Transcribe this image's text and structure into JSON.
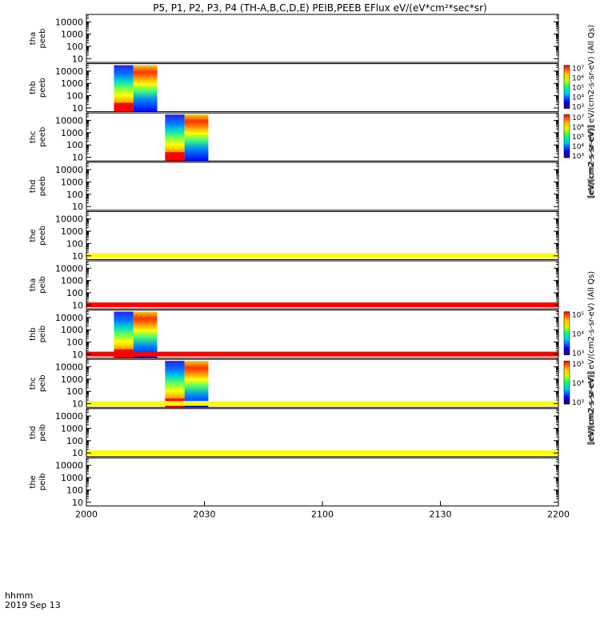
{
  "title": "P5, P1, P2, P3, P4 (TH-A,B,C,D,E) PEIB,PEEB EFlux eV/(eV*cm²*sec*sr)",
  "footer": {
    "time_label": "hhmm",
    "date_label": "2019 Sep 13"
  },
  "colors": {
    "red": "#ff0000",
    "yellow": "#ffff00",
    "black": "#000000"
  },
  "chart_data": {
    "type": "heatmap",
    "x_ticks": [
      "2000",
      "2030",
      "2100",
      "2130",
      "2200"
    ],
    "x_range_minutes": [
      0,
      120
    ],
    "y_ticks": [
      "10",
      "100",
      "1000",
      "10000"
    ],
    "y_range": [
      5,
      40000
    ],
    "y_scale": "log",
    "panels": [
      {
        "probe": "tha",
        "product": "peeb",
        "data": []
      },
      {
        "probe": "thb",
        "product": "peeb",
        "data": [
          {
            "start_min": 7,
            "end_min": 18,
            "energy_range": [
              5,
              30000
            ]
          }
        ],
        "colorbar": {
          "label": "[eV/(cm2-s-sr-eV)] eV/(cm2-s-sr-eV)  (All Qs)",
          "ticks": [
            "10⁷",
            "10⁶",
            "10⁵",
            "10⁴",
            "10³"
          ]
        }
      },
      {
        "probe": "thc",
        "product": "peeb",
        "data": [
          {
            "start_min": 20,
            "end_min": 31,
            "energy_range": [
              5,
              30000
            ]
          }
        ],
        "colorbar": {
          "label": "[eV/(cm2-s-sr-eV)]",
          "ticks": [
            "10⁷",
            "10⁶",
            "10⁵",
            "10⁴",
            "10³"
          ]
        }
      },
      {
        "probe": "thd",
        "product": "peeb",
        "data": []
      },
      {
        "probe": "the",
        "product": "peeb",
        "data": [],
        "bottom_strip": "yellow"
      },
      {
        "probe": "tha",
        "product": "peib",
        "data": [],
        "bottom_strip": "red"
      },
      {
        "probe": "thb",
        "product": "peib",
        "data": [
          {
            "start_min": 7,
            "end_min": 18,
            "energy_range": [
              5,
              30000
            ]
          }
        ],
        "bottom_strip": "red",
        "colorbar": {
          "label": "[eV/(cm2-s-sr-eV)] eV/(cm2-s-sr-eV)  (All Qs)",
          "ticks": [
            "10⁵",
            "10⁴",
            "10³"
          ]
        }
      },
      {
        "probe": "thc",
        "product": "peib",
        "data": [
          {
            "start_min": 20,
            "end_min": 31,
            "energy_range": [
              5,
              30000
            ]
          }
        ],
        "bottom_strip": "yellow",
        "colorbar": {
          "label": "[eV/(cm2-s-sr-eV)]",
          "ticks": [
            "10⁵",
            "10⁴",
            "10³"
          ]
        }
      },
      {
        "probe": "thd",
        "product": "peib",
        "data": [],
        "bottom_strip": "yellow"
      },
      {
        "probe": "the",
        "product": "peib",
        "data": []
      }
    ]
  }
}
